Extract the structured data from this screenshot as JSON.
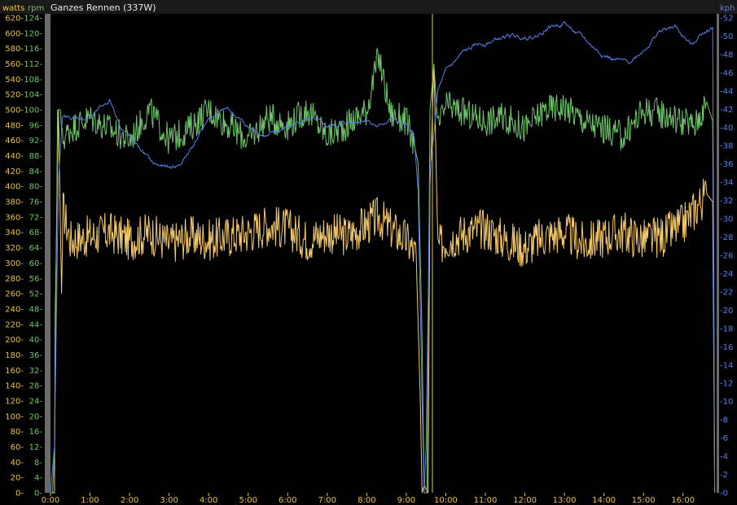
{
  "title": "Ganzes Rennen (337W)",
  "chart_data": {
    "type": "line",
    "title": "Ganzes Rennen (337W)",
    "xaxis": {
      "unit": "min",
      "range": [
        0,
        16.85
      ],
      "ticks": [
        "0:00",
        "1:00",
        "2:00",
        "3:00",
        "4:00",
        "5:00",
        "6:00",
        "7:00",
        "8:00",
        "9:00",
        "10:00",
        "11:00",
        "12:00",
        "13:00",
        "14:00",
        "15:00",
        "16:00"
      ],
      "tick_values": [
        0,
        1,
        2,
        3,
        4,
        5,
        6,
        7,
        8,
        9,
        10,
        11,
        12,
        13,
        14,
        15,
        16
      ]
    },
    "axes": {
      "watts": {
        "label": "watts",
        "color": "#e8c23e",
        "range": [
          0,
          620
        ],
        "step": 20,
        "side": "left"
      },
      "rpm": {
        "label": "rpm",
        "color": "#6fc46a",
        "range": [
          0,
          124
        ],
        "step": 4,
        "side": "left"
      },
      "kph": {
        "label": "kph",
        "color": "#5a7ff0",
        "range": [
          0,
          52
        ],
        "step": 2,
        "side": "right"
      }
    },
    "series": [
      {
        "name": "watts",
        "axis": "watts",
        "color": "#f3c96a",
        "points": [
          [
            0,
            0
          ],
          [
            0.05,
            0
          ],
          [
            0.1,
            0
          ],
          [
            0.12,
            230
          ],
          [
            0.2,
            500
          ],
          [
            0.28,
            260
          ],
          [
            0.32,
            370
          ],
          [
            0.5,
            330
          ],
          [
            1,
            335
          ],
          [
            1.5,
            340
          ],
          [
            2,
            330
          ],
          [
            2.5,
            340
          ],
          [
            3,
            325
          ],
          [
            3.5,
            335
          ],
          [
            4,
            330
          ],
          [
            4.5,
            335
          ],
          [
            5,
            340
          ],
          [
            5.5,
            350
          ],
          [
            6,
            345
          ],
          [
            6.5,
            330
          ],
          [
            7,
            340
          ],
          [
            7.5,
            335
          ],
          [
            8,
            350
          ],
          [
            8.3,
            360
          ],
          [
            8.6,
            345
          ],
          [
            9,
            330
          ],
          [
            9.25,
            310
          ],
          [
            9.35,
            130
          ],
          [
            9.4,
            0
          ],
          [
            9.45,
            10
          ],
          [
            9.55,
            0
          ],
          [
            9.6,
            400
          ],
          [
            9.7,
            560
          ],
          [
            9.8,
            320
          ],
          [
            10,
            330
          ],
          [
            10.5,
            340
          ],
          [
            11,
            345
          ],
          [
            11.5,
            330
          ],
          [
            12,
            320
          ],
          [
            12.5,
            335
          ],
          [
            13,
            340
          ],
          [
            13.5,
            325
          ],
          [
            14,
            335
          ],
          [
            14.5,
            340
          ],
          [
            15,
            330
          ],
          [
            15.5,
            335
          ],
          [
            16,
            350
          ],
          [
            16.3,
            370
          ],
          [
            16.6,
            390
          ],
          [
            16.75,
            380
          ],
          [
            16.8,
            0
          ]
        ]
      },
      {
        "name": "rpm",
        "axis": "rpm",
        "color": "#6fc46a",
        "points": [
          [
            0,
            0
          ],
          [
            0.05,
            0
          ],
          [
            0.1,
            10
          ],
          [
            0.18,
            100
          ],
          [
            0.25,
            100
          ],
          [
            0.3,
            92
          ],
          [
            0.5,
            95
          ],
          [
            1,
            98
          ],
          [
            1.5,
            95
          ],
          [
            2,
            92
          ],
          [
            2.5,
            100
          ],
          [
            3,
            92
          ],
          [
            3.5,
            95
          ],
          [
            4,
            100
          ],
          [
            4.5,
            96
          ],
          [
            5,
            92
          ],
          [
            5.5,
            98
          ],
          [
            6,
            96
          ],
          [
            6.5,
            100
          ],
          [
            7,
            93
          ],
          [
            7.5,
            96
          ],
          [
            8,
            100
          ],
          [
            8.3,
            114
          ],
          [
            8.6,
            99
          ],
          [
            9,
            97
          ],
          [
            9.2,
            91
          ],
          [
            9.3,
            86
          ],
          [
            9.4,
            40
          ],
          [
            9.45,
            0
          ],
          [
            9.52,
            0
          ],
          [
            9.6,
            100
          ],
          [
            9.7,
            112
          ],
          [
            9.8,
            95
          ],
          [
            10,
            101
          ],
          [
            10.5,
            99
          ],
          [
            11,
            97
          ],
          [
            11.5,
            98
          ],
          [
            12,
            95
          ],
          [
            12.5,
            100
          ],
          [
            13,
            101
          ],
          [
            13.5,
            97
          ],
          [
            14,
            95
          ],
          [
            14.5,
            93
          ],
          [
            15,
            100
          ],
          [
            15.5,
            99
          ],
          [
            16,
            97
          ],
          [
            16.3,
            96
          ],
          [
            16.6,
            102
          ],
          [
            16.75,
            97
          ],
          [
            16.8,
            0
          ]
        ]
      },
      {
        "name": "kph",
        "axis": "kph",
        "color": "#5a7ff0",
        "points": [
          [
            0,
            0
          ],
          [
            0.1,
            5
          ],
          [
            0.2,
            34
          ],
          [
            0.3,
            41
          ],
          [
            0.5,
            41
          ],
          [
            1,
            41
          ],
          [
            1.5,
            43
          ],
          [
            1.8,
            40
          ],
          [
            2.2,
            38
          ],
          [
            2.6,
            36
          ],
          [
            3,
            35.5
          ],
          [
            3.3,
            36
          ],
          [
            3.6,
            38
          ],
          [
            4,
            41
          ],
          [
            4.5,
            42
          ],
          [
            5,
            40
          ],
          [
            5.5,
            39
          ],
          [
            6,
            40
          ],
          [
            6.5,
            41
          ],
          [
            7,
            40
          ],
          [
            7.5,
            40.5
          ],
          [
            8,
            41
          ],
          [
            8.3,
            40
          ],
          [
            8.6,
            41
          ],
          [
            9,
            40
          ],
          [
            9.2,
            39
          ],
          [
            9.3,
            33
          ],
          [
            9.4,
            10
          ],
          [
            9.45,
            0
          ],
          [
            9.5,
            5
          ],
          [
            9.6,
            35
          ],
          [
            9.8,
            44
          ],
          [
            10,
            46
          ],
          [
            10.4,
            48
          ],
          [
            10.8,
            49
          ],
          [
            11.2,
            49.5
          ],
          [
            11.6,
            50
          ],
          [
            12,
            50
          ],
          [
            12.3,
            50
          ],
          [
            12.6,
            51
          ],
          [
            13,
            51.5
          ],
          [
            13.4,
            50
          ],
          [
            13.8,
            48.5
          ],
          [
            14.2,
            47.5
          ],
          [
            14.6,
            47
          ],
          [
            15,
            48.5
          ],
          [
            15.4,
            50.5
          ],
          [
            15.8,
            51
          ],
          [
            16.2,
            49
          ],
          [
            16.5,
            50.5
          ],
          [
            16.75,
            51
          ],
          [
            16.8,
            0
          ]
        ]
      }
    ],
    "grid": false,
    "legend": "none"
  }
}
